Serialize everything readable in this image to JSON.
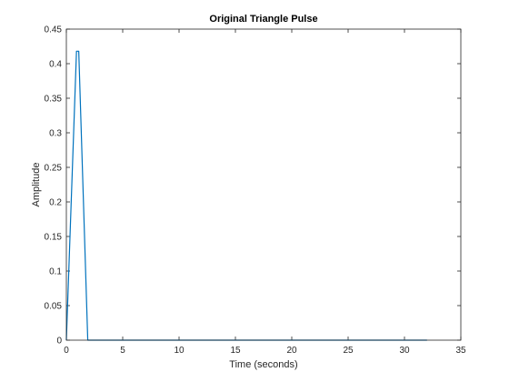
{
  "chart_data": {
    "type": "line",
    "title": "Original Triangle Pulse",
    "xlabel": "Time (seconds)",
    "ylabel": "Amplitude",
    "xlim": [
      0,
      35
    ],
    "ylim": [
      0,
      0.45
    ],
    "xticks": [
      0,
      5,
      10,
      15,
      20,
      25,
      30,
      35
    ],
    "xtick_labels": [
      "0",
      "5",
      "10",
      "15",
      "20",
      "25",
      "30",
      "35"
    ],
    "yticks": [
      0,
      0.05,
      0.1,
      0.15,
      0.2,
      0.25,
      0.3,
      0.35,
      0.4,
      0.45
    ],
    "ytick_labels": [
      "0",
      "0.05",
      "0.1",
      "0.15",
      "0.2",
      "0.25",
      "0.3",
      "0.35",
      "0.4",
      "0.45"
    ],
    "grid": false,
    "box": true,
    "series": [
      {
        "color": "#0072bd",
        "x": [
          0,
          0.9,
          1.1,
          1.9,
          32
        ],
        "y": [
          0,
          0.418,
          0.418,
          0,
          0
        ]
      }
    ]
  }
}
